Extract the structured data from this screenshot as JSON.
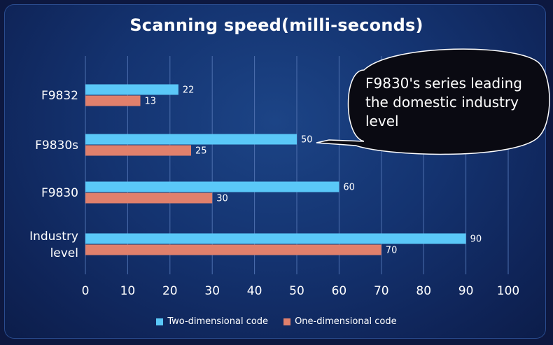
{
  "chart_data": {
    "type": "bar",
    "orientation": "horizontal",
    "title": "Scanning speed(milli-seconds)",
    "categories": [
      "F9832",
      "F9830s",
      "F9830",
      "Industry level"
    ],
    "series": [
      {
        "name": "Two-dimensional code",
        "color": "#5ac8f8",
        "values": [
          22,
          50,
          60,
          90
        ]
      },
      {
        "name": "One-dimensional code",
        "color": "#e0806c",
        "values": [
          13,
          25,
          30,
          70
        ]
      }
    ],
    "xlim": [
      0,
      100
    ],
    "xticks": [
      0,
      10,
      20,
      30,
      40,
      50,
      60,
      70,
      80,
      90,
      100
    ],
    "grid": true,
    "legend": "bottom-center",
    "annotation": "F9830's series leading the domestic industry level"
  }
}
